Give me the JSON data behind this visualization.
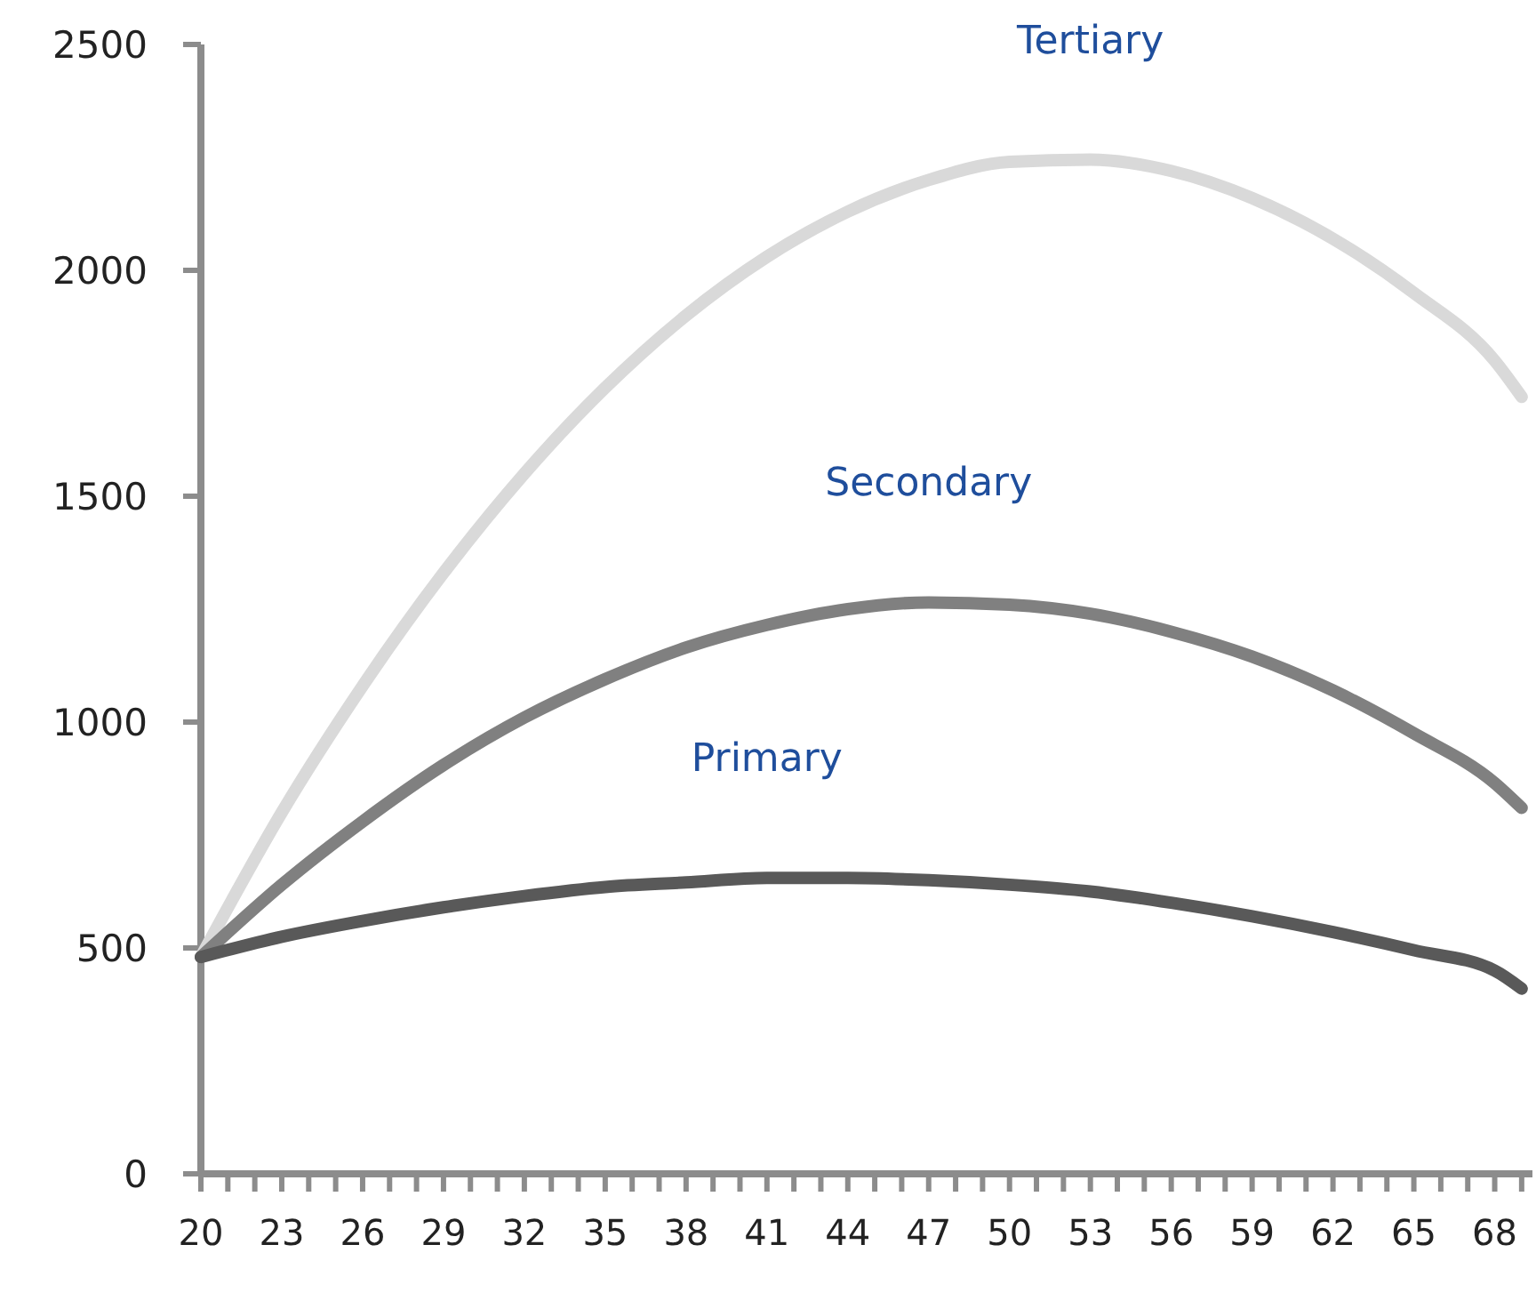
{
  "chart_data": {
    "type": "line",
    "x": [
      20,
      23,
      26,
      29,
      32,
      35,
      38,
      41,
      44,
      47,
      50,
      53,
      56,
      59,
      62,
      65,
      68,
      69
    ],
    "series": [
      {
        "name": "Tertiary",
        "color": "#d9d9d9",
        "values": [
          480,
          800,
          1080,
          1330,
          1550,
          1740,
          1900,
          2030,
          2130,
          2200,
          2240,
          2245,
          2220,
          2160,
          2070,
          1950,
          1800,
          1720
        ]
      },
      {
        "name": "Secondary",
        "color": "#808080",
        "values": [
          480,
          640,
          780,
          905,
          1010,
          1095,
          1165,
          1215,
          1250,
          1265,
          1260,
          1240,
          1200,
          1145,
          1070,
          975,
          865,
          810
        ]
      },
      {
        "name": "Primary",
        "color": "#595959",
        "values": [
          480,
          525,
          560,
          590,
          615,
          635,
          645,
          655,
          655,
          650,
          640,
          625,
          600,
          570,
          535,
          495,
          450,
          410
        ]
      }
    ],
    "xlim": [
      20,
      69.4
    ],
    "xticks": [
      20,
      {
        "value": 21,
        "label": null
      },
      {
        "value": 22,
        "label": null
      },
      23,
      {
        "value": 24,
        "label": null
      },
      {
        "value": 25,
        "label": null
      },
      26,
      {
        "value": 27,
        "label": null
      },
      {
        "value": 28,
        "label": null
      },
      29,
      {
        "value": 30,
        "label": null
      },
      {
        "value": 31,
        "label": null
      },
      32,
      {
        "value": 33,
        "label": null
      },
      {
        "value": 34,
        "label": null
      },
      35,
      {
        "value": 36,
        "label": null
      },
      {
        "value": 37,
        "label": null
      },
      38,
      {
        "value": 39,
        "label": null
      },
      {
        "value": 40,
        "label": null
      },
      41,
      {
        "value": 42,
        "label": null
      },
      {
        "value": 43,
        "label": null
      },
      44,
      {
        "value": 45,
        "label": null
      },
      {
        "value": 46,
        "label": null
      },
      47,
      {
        "value": 48,
        "label": null
      },
      {
        "value": 49,
        "label": null
      },
      50,
      {
        "value": 51,
        "label": null
      },
      {
        "value": 52,
        "label": null
      },
      53,
      {
        "value": 54,
        "label": null
      },
      {
        "value": 55,
        "label": null
      },
      56,
      {
        "value": 57,
        "label": null
      },
      {
        "value": 58,
        "label": null
      },
      59,
      {
        "value": 60,
        "label": null
      },
      {
        "value": 61,
        "label": null
      },
      62,
      {
        "value": 63,
        "label": null
      },
      {
        "value": 64,
        "label": null
      },
      65,
      {
        "value": 66,
        "label": null
      },
      {
        "value": 67,
        "label": null
      },
      68,
      {
        "value": 69,
        "label": null
      }
    ],
    "ylim": [
      0,
      2500
    ],
    "yticks": [
      0,
      500,
      1000,
      1500,
      2000,
      2500
    ],
    "grid": false,
    "marker": "none",
    "line_style": "solid"
  }
}
